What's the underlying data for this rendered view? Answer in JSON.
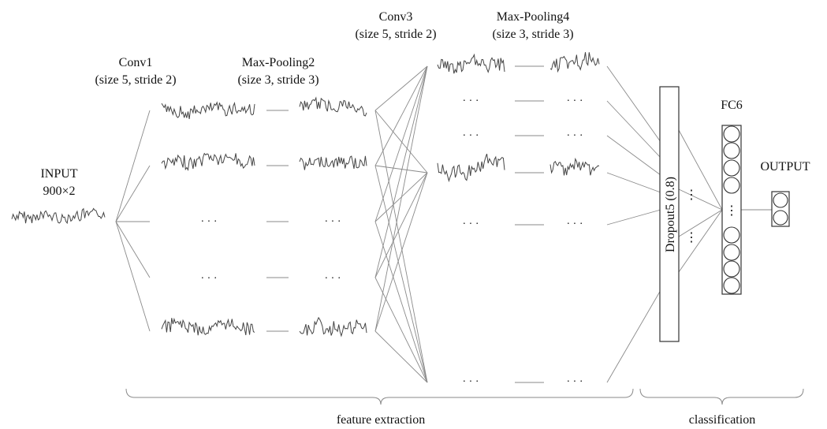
{
  "labels": {
    "input": [
      "INPUT",
      "900×2"
    ],
    "conv1": [
      "Conv1",
      "(size 5, stride 2)"
    ],
    "pool2": [
      "Max-Pooling2",
      "(size 3, stride 3)"
    ],
    "conv3": [
      "Conv3",
      "(size 5, stride 2)"
    ],
    "pool4": [
      "Max-Pooling4",
      "(size 3, stride 3)"
    ],
    "dropout5": "Dropout5 (0.8)",
    "fc6": "FC6",
    "output": "OUTPUT"
  },
  "ellipsis": "· · ·",
  "vertical_ellipsis": "⋮",
  "braces": {
    "feature_extraction": "feature extraction",
    "classification": "classification"
  },
  "colors": {
    "line": "#8a8a8a",
    "signal": "#444444",
    "box": "#333333",
    "text": "#111111"
  }
}
